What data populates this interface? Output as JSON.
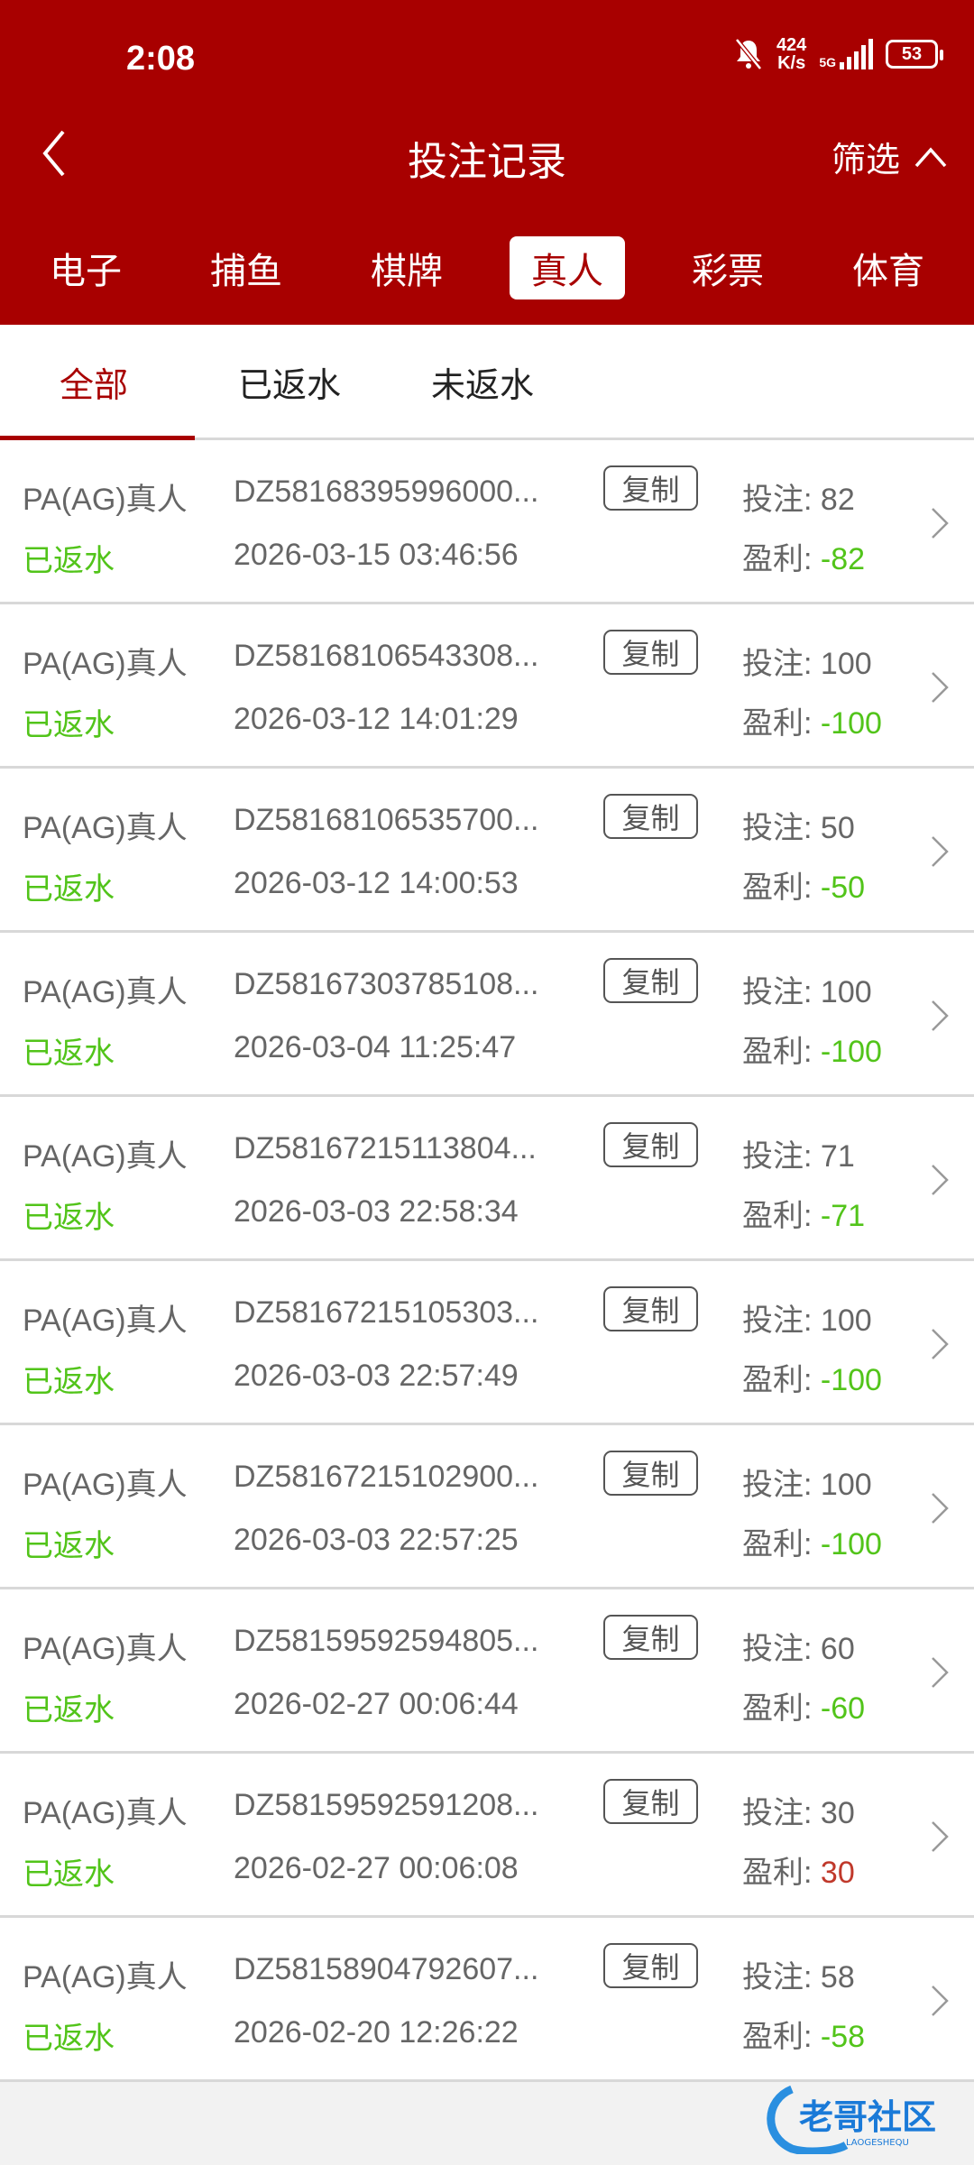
{
  "status_bar": {
    "time": "2:08",
    "net_speed_value": "424",
    "net_speed_unit": "K/s",
    "network": "5G",
    "battery": "53"
  },
  "header": {
    "title": "投注记录",
    "filter_label": "筛选"
  },
  "categories": [
    {
      "label": "电子"
    },
    {
      "label": "捕鱼"
    },
    {
      "label": "棋牌"
    },
    {
      "label": "真人",
      "active": true
    },
    {
      "label": "彩票"
    },
    {
      "label": "体育"
    }
  ],
  "subtabs": [
    {
      "label": "全部",
      "active": true
    },
    {
      "label": "已返水"
    },
    {
      "label": "未返水"
    }
  ],
  "labels": {
    "copy": "复制",
    "stake": "投注: ",
    "profit": "盈利: "
  },
  "colors": {
    "brand": "#a80000",
    "negative": "#52c41a",
    "positive": "#c0392b"
  },
  "records": [
    {
      "game": "PA(AG)真人",
      "status": "已返水",
      "order": "DZ58168395996000...",
      "time": "2026-03-15 03:46:56",
      "stake": "82",
      "profit": "-82"
    },
    {
      "game": "PA(AG)真人",
      "status": "已返水",
      "order": "DZ58168106543308...",
      "time": "2026-03-12 14:01:29",
      "stake": "100",
      "profit": "-100"
    },
    {
      "game": "PA(AG)真人",
      "status": "已返水",
      "order": "DZ58168106535700...",
      "time": "2026-03-12 14:00:53",
      "stake": "50",
      "profit": "-50"
    },
    {
      "game": "PA(AG)真人",
      "status": "已返水",
      "order": "DZ58167303785108...",
      "time": "2026-03-04 11:25:47",
      "stake": "100",
      "profit": "-100"
    },
    {
      "game": "PA(AG)真人",
      "status": "已返水",
      "order": "DZ58167215113804...",
      "time": "2026-03-03 22:58:34",
      "stake": "71",
      "profit": "-71"
    },
    {
      "game": "PA(AG)真人",
      "status": "已返水",
      "order": "DZ58167215105303...",
      "time": "2026-03-03 22:57:49",
      "stake": "100",
      "profit": "-100"
    },
    {
      "game": "PA(AG)真人",
      "status": "已返水",
      "order": "DZ58167215102900...",
      "time": "2026-03-03 22:57:25",
      "stake": "100",
      "profit": "-100"
    },
    {
      "game": "PA(AG)真人",
      "status": "已返水",
      "order": "DZ58159592594805...",
      "time": "2026-02-27 00:06:44",
      "stake": "60",
      "profit": "-60"
    },
    {
      "game": "PA(AG)真人",
      "status": "已返水",
      "order": "DZ58159592591208...",
      "time": "2026-02-27 00:06:08",
      "stake": "30",
      "profit": "30"
    },
    {
      "game": "PA(AG)真人",
      "status": "已返水",
      "order": "DZ58158904792607...",
      "time": "2026-02-20 12:26:22",
      "stake": "58",
      "profit": "-58"
    }
  ],
  "watermark": {
    "text": "老哥社区",
    "subtext": "LAOGESHEQU"
  }
}
